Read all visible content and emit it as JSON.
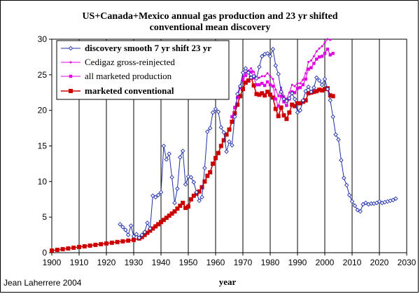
{
  "chart_data": {
    "type": "line",
    "title": "US+Canada+Mexico annual gas production and 23 yr shifted conventional mean discovery",
    "title_lines": [
      "US+Canada+Mexico annual gas production and 23 yr shifted",
      "conventional mean discovery"
    ],
    "xlabel": "year",
    "ylabel": "",
    "credit": "Jean Laherrere 2004",
    "xlim": [
      1900,
      2030
    ],
    "ylim": [
      0,
      30
    ],
    "x_ticks": [
      1900,
      1910,
      1920,
      1930,
      1940,
      1950,
      1960,
      1970,
      1980,
      1990,
      2000,
      2010,
      2020,
      2030
    ],
    "y_ticks": [
      0,
      5,
      10,
      15,
      20,
      25,
      30
    ],
    "grid": "vertical",
    "legend_position": "top-left",
    "series": [
      {
        "name": "discovery smooth 7 yr shift 23 yr",
        "color": "#1f2fa8",
        "marker": "diamond-open",
        "points": [
          [
            1925,
            4.0
          ],
          [
            1926,
            3.6
          ],
          [
            1927,
            3.2
          ],
          [
            1928,
            2.5
          ],
          [
            1929,
            3.8
          ],
          [
            1930,
            2.3
          ],
          [
            1931,
            2.6
          ],
          [
            1932,
            2.1
          ],
          [
            1933,
            2.5
          ],
          [
            1934,
            2.9
          ],
          [
            1935,
            4.2
          ],
          [
            1936,
            3.4
          ],
          [
            1937,
            8.0
          ],
          [
            1938,
            7.8
          ],
          [
            1939,
            8.1
          ],
          [
            1940,
            8.5
          ],
          [
            1941,
            15.0
          ],
          [
            1942,
            13.1
          ],
          [
            1943,
            13.9
          ],
          [
            1944,
            10.6
          ],
          [
            1945,
            7.0
          ],
          [
            1946,
            9.0
          ],
          [
            1947,
            13.4
          ],
          [
            1948,
            14.3
          ],
          [
            1949,
            9.6
          ],
          [
            1950,
            10.7
          ],
          [
            1951,
            10.6
          ],
          [
            1952,
            9.9
          ],
          [
            1953,
            8.5
          ],
          [
            1954,
            7.3
          ],
          [
            1955,
            7.8
          ],
          [
            1956,
            11.9
          ],
          [
            1957,
            17.0
          ],
          [
            1958,
            17.5
          ],
          [
            1959,
            19.7
          ],
          [
            1960,
            20.2
          ],
          [
            1961,
            19.8
          ],
          [
            1962,
            17.6
          ],
          [
            1963,
            16.9
          ],
          [
            1964,
            14.2
          ],
          [
            1965,
            15.6
          ],
          [
            1966,
            15.1
          ],
          [
            1967,
            19.1
          ],
          [
            1968,
            22.3
          ],
          [
            1969,
            23.4
          ],
          [
            1970,
            25.3
          ],
          [
            1971,
            25.9
          ],
          [
            1972,
            25.3
          ],
          [
            1973,
            24.6
          ],
          [
            1974,
            24.8
          ],
          [
            1975,
            24.5
          ],
          [
            1976,
            26.1
          ],
          [
            1977,
            27.6
          ],
          [
            1978,
            27.9
          ],
          [
            1979,
            28.0
          ],
          [
            1980,
            27.6
          ],
          [
            1981,
            28.6
          ],
          [
            1982,
            26.3
          ],
          [
            1983,
            25.1
          ],
          [
            1984,
            22.6
          ],
          [
            1985,
            21.6
          ],
          [
            1986,
            21.3
          ],
          [
            1987,
            21.7
          ],
          [
            1988,
            22.4
          ],
          [
            1989,
            21.6
          ],
          [
            1990,
            19.7
          ],
          [
            1991,
            20.0
          ],
          [
            1992,
            21.4
          ],
          [
            1993,
            22.7
          ],
          [
            1994,
            23.3
          ],
          [
            1995,
            22.6
          ],
          [
            1996,
            23.2
          ],
          [
            1997,
            24.6
          ],
          [
            1998,
            24.2
          ],
          [
            1999,
            23.6
          ],
          [
            2000,
            24.4
          ],
          [
            2001,
            23.0
          ],
          [
            2002,
            21.4
          ],
          [
            2003,
            19.1
          ],
          [
            2004,
            16.6
          ],
          [
            2005,
            15.9
          ],
          [
            2006,
            13.0
          ],
          [
            2007,
            10.5
          ],
          [
            2008,
            9.5
          ],
          [
            2009,
            8.1
          ],
          [
            2010,
            7.2
          ],
          [
            2011,
            6.6
          ],
          [
            2012,
            6.0
          ],
          [
            2013,
            5.8
          ],
          [
            2014,
            6.8
          ],
          [
            2015,
            7.0
          ],
          [
            2016,
            6.8
          ],
          [
            2017,
            6.9
          ],
          [
            2018,
            6.9
          ],
          [
            2019,
            7.0
          ],
          [
            2020,
            7.2
          ],
          [
            2021,
            7.0
          ],
          [
            2022,
            7.1
          ],
          [
            2023,
            7.2
          ],
          [
            2024,
            7.3
          ],
          [
            2025,
            7.4
          ],
          [
            2026,
            7.6
          ]
        ]
      },
      {
        "name": "Cedigaz gross-reinjected",
        "color": "#e000e0",
        "marker": "small-dot",
        "points": [
          [
            1970,
            24.6
          ],
          [
            1971,
            25.3
          ],
          [
            1972,
            25.6
          ],
          [
            1973,
            25.9
          ],
          [
            1974,
            25.4
          ],
          [
            1975,
            24.6
          ],
          [
            1976,
            24.6
          ],
          [
            1977,
            24.8
          ],
          [
            1978,
            24.8
          ],
          [
            1979,
            25.2
          ],
          [
            1980,
            24.8
          ],
          [
            1981,
            24.4
          ],
          [
            1982,
            22.9
          ],
          [
            1983,
            22.0
          ],
          [
            1984,
            23.2
          ],
          [
            1985,
            22.0
          ],
          [
            1986,
            21.6
          ],
          [
            1987,
            22.5
          ],
          [
            1988,
            23.6
          ],
          [
            1989,
            23.4
          ],
          [
            1990,
            23.8
          ],
          [
            1991,
            23.8
          ],
          [
            1992,
            24.3
          ],
          [
            1993,
            25.2
          ],
          [
            1994,
            26.8
          ],
          [
            1995,
            27.0
          ],
          [
            1996,
            27.6
          ],
          [
            1997,
            28.3
          ],
          [
            1998,
            28.7
          ],
          [
            1999,
            29.0
          ],
          [
            2000,
            29.5
          ],
          [
            2001,
            30.0
          ],
          [
            2002,
            29.9
          ]
        ]
      },
      {
        "name": "all marketed production",
        "color": "#e000e0",
        "marker": "square-small",
        "points": [
          [
            1966,
            19.1
          ],
          [
            1967,
            20.4
          ],
          [
            1968,
            21.8
          ],
          [
            1969,
            23.2
          ],
          [
            1970,
            24.3
          ],
          [
            1971,
            24.9
          ],
          [
            1972,
            25.3
          ],
          [
            1973,
            25.4
          ],
          [
            1974,
            24.6
          ],
          [
            1975,
            23.6
          ],
          [
            1976,
            23.6
          ],
          [
            1977,
            23.8
          ],
          [
            1978,
            23.5
          ],
          [
            1979,
            24.0
          ],
          [
            1980,
            23.6
          ],
          [
            1981,
            23.4
          ],
          [
            1982,
            21.6
          ],
          [
            1983,
            20.6
          ],
          [
            1984,
            22.0
          ],
          [
            1985,
            21.2
          ],
          [
            1986,
            20.7
          ],
          [
            1987,
            21.6
          ],
          [
            1988,
            22.6
          ],
          [
            1989,
            22.5
          ],
          [
            1990,
            23.1
          ],
          [
            1991,
            23.2
          ],
          [
            1992,
            23.6
          ],
          [
            1993,
            24.4
          ],
          [
            1994,
            25.8
          ],
          [
            1995,
            26.0
          ],
          [
            1996,
            26.6
          ],
          [
            1997,
            27.2
          ],
          [
            1998,
            27.5
          ],
          [
            1999,
            27.6
          ],
          [
            2000,
            28.0
          ],
          [
            2001,
            28.6
          ],
          [
            2002,
            27.8
          ],
          [
            2003,
            28.0
          ]
        ]
      },
      {
        "name": "marketed conventional",
        "color": "#cc0000",
        "marker": "square",
        "points": [
          [
            1900,
            0.3
          ],
          [
            1902,
            0.4
          ],
          [
            1904,
            0.5
          ],
          [
            1906,
            0.6
          ],
          [
            1908,
            0.7
          ],
          [
            1910,
            0.8
          ],
          [
            1912,
            0.9
          ],
          [
            1914,
            1.0
          ],
          [
            1916,
            1.1
          ],
          [
            1918,
            1.2
          ],
          [
            1920,
            1.3
          ],
          [
            1922,
            1.4
          ],
          [
            1924,
            1.5
          ],
          [
            1926,
            1.6
          ],
          [
            1928,
            1.7
          ],
          [
            1930,
            1.8
          ],
          [
            1932,
            2.0
          ],
          [
            1933,
            2.2
          ],
          [
            1934,
            2.5
          ],
          [
            1935,
            2.8
          ],
          [
            1936,
            3.1
          ],
          [
            1937,
            3.4
          ],
          [
            1938,
            3.7
          ],
          [
            1939,
            4.0
          ],
          [
            1940,
            4.3
          ],
          [
            1941,
            4.6
          ],
          [
            1942,
            4.9
          ],
          [
            1943,
            5.2
          ],
          [
            1944,
            5.5
          ],
          [
            1945,
            5.8
          ],
          [
            1946,
            6.2
          ],
          [
            1947,
            6.6
          ],
          [
            1948,
            7.0
          ],
          [
            1949,
            6.3
          ],
          [
            1950,
            6.5
          ],
          [
            1951,
            7.5
          ],
          [
            1952,
            8.0
          ],
          [
            1953,
            8.3
          ],
          [
            1954,
            8.6
          ],
          [
            1955,
            9.2
          ],
          [
            1956,
            10.0
          ],
          [
            1957,
            10.8
          ],
          [
            1958,
            11.3
          ],
          [
            1959,
            12.5
          ],
          [
            1960,
            13.3
          ],
          [
            1961,
            14.0
          ],
          [
            1962,
            15.0
          ],
          [
            1963,
            15.8
          ],
          [
            1964,
            16.6
          ],
          [
            1965,
            17.3
          ],
          [
            1966,
            18.4
          ],
          [
            1967,
            19.6
          ],
          [
            1968,
            20.8
          ],
          [
            1969,
            22.0
          ],
          [
            1970,
            23.0
          ],
          [
            1971,
            23.9
          ],
          [
            1972,
            24.2
          ],
          [
            1973,
            24.6
          ],
          [
            1974,
            23.5
          ],
          [
            1975,
            22.3
          ],
          [
            1976,
            22.2
          ],
          [
            1977,
            22.4
          ],
          [
            1978,
            22.1
          ],
          [
            1979,
            22.6
          ],
          [
            1980,
            22.2
          ],
          [
            1981,
            21.8
          ],
          [
            1982,
            20.2
          ],
          [
            1983,
            19.2
          ],
          [
            1984,
            20.4
          ],
          [
            1985,
            19.3
          ],
          [
            1986,
            18.8
          ],
          [
            1987,
            19.7
          ],
          [
            1988,
            20.8
          ],
          [
            1989,
            20.6
          ],
          [
            1990,
            21.0
          ],
          [
            1991,
            21.0
          ],
          [
            1992,
            21.2
          ],
          [
            1993,
            21.4
          ],
          [
            1994,
            22.4
          ],
          [
            1995,
            22.5
          ],
          [
            1996,
            22.6
          ],
          [
            1997,
            22.7
          ],
          [
            1998,
            22.9
          ],
          [
            1999,
            22.8
          ],
          [
            2000,
            23.0
          ],
          [
            2001,
            23.1
          ],
          [
            2002,
            22.1
          ],
          [
            2003,
            22.0
          ]
        ]
      }
    ]
  }
}
